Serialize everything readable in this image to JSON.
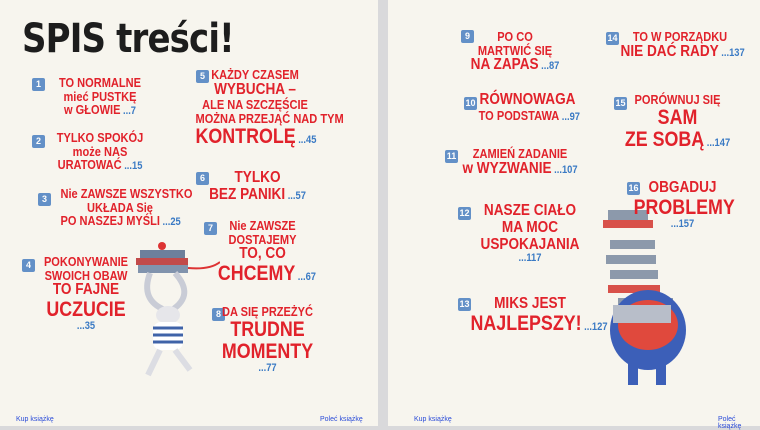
{
  "title": "SPIS treści!",
  "colors": {
    "text": "#e1222b",
    "page_number": "#3a7ac4",
    "badge": "#4a7fc1",
    "paper": "#f7f5ee"
  },
  "entries": [
    {
      "num": "1",
      "lines": [
        "TO NORMALNE",
        "mieć PUSTKĘ",
        "w GŁOWIE"
      ],
      "emphasis": [
        "s",
        "s",
        "s"
      ],
      "page": "...7",
      "page_own_line": false
    },
    {
      "num": "2",
      "lines": [
        "TYLKO SPOKÓJ",
        "może NAS",
        "URATOWAĆ"
      ],
      "emphasis": [
        "s",
        "s",
        "s"
      ],
      "page": "...15",
      "page_own_line": false
    },
    {
      "num": "3",
      "lines": [
        "Nie ZAWSZE WSZYSTKO",
        "UKŁADA Się",
        "PO NASZEJ MYŚLI"
      ],
      "emphasis": [
        "s",
        "s",
        "s"
      ],
      "page": "...25",
      "page_own_line": false
    },
    {
      "num": "4",
      "lines": [
        "POKONYWANIE",
        "SWOICH OBAW",
        "TO FAJNE",
        "UCZUCIE"
      ],
      "emphasis": [
        "s",
        "s",
        "m",
        "l"
      ],
      "page": "...35",
      "page_own_line": true
    },
    {
      "num": "5",
      "lines": [
        "KAŻDY CZASEM",
        "WYBUCHA –",
        "ALE NA SZCZĘŚCIE",
        "MOŻNA PRZEJĄĆ NAD TYM",
        "KONTROLĘ"
      ],
      "emphasis": [
        "s",
        "m",
        "s",
        "s",
        "l"
      ],
      "page": "...45",
      "page_own_line": false
    },
    {
      "num": "6",
      "lines": [
        "TYLKO",
        "BEZ PANIKI"
      ],
      "emphasis": [
        "m",
        "m"
      ],
      "page": "...57",
      "page_own_line": false
    },
    {
      "num": "7",
      "lines": [
        "Nie ZAWSZE",
        "DOSTAJEMY",
        "TO, CO",
        "CHCEMY"
      ],
      "emphasis": [
        "s",
        "s",
        "m",
        "l"
      ],
      "page": "...67",
      "page_own_line": false
    },
    {
      "num": "8",
      "lines": [
        "DA SIĘ PRZEŻYĆ",
        "TRUDNE",
        "MOMENTY"
      ],
      "emphasis": [
        "s",
        "l",
        "l"
      ],
      "page": "...77",
      "page_own_line": true
    },
    {
      "num": "9",
      "lines": [
        "PO CO",
        "MARTWIĆ SIĘ",
        "NA ZAPAS"
      ],
      "emphasis": [
        "s",
        "s",
        "m"
      ],
      "page": "...87",
      "page_own_line": false
    },
    {
      "num": "10",
      "lines": [
        "RÓWNOWAGA",
        "TO PODSTAWA"
      ],
      "emphasis": [
        "m",
        "s"
      ],
      "page": "...97",
      "page_own_line": false
    },
    {
      "num": "11",
      "lines": [
        "ZAMIEŃ ZADANIE",
        "w WYZWANIE"
      ],
      "emphasis": [
        "s",
        "m"
      ],
      "page": "...107",
      "page_own_line": false
    },
    {
      "num": "12",
      "lines": [
        "NASZE CIAŁO",
        "MA MOC",
        "USPOKAJANIA"
      ],
      "emphasis": [
        "m",
        "m",
        "m"
      ],
      "page": "...117",
      "page_own_line": true
    },
    {
      "num": "13",
      "lines": [
        "MIKS JEST",
        "NAJLEPSZY!"
      ],
      "emphasis": [
        "m",
        "l"
      ],
      "page": "...127",
      "page_own_line": false
    },
    {
      "num": "14",
      "lines": [
        "TO W PORZĄDKU",
        "NIE DAĆ RADY"
      ],
      "emphasis": [
        "s",
        "m"
      ],
      "page": "...137",
      "page_own_line": false
    },
    {
      "num": "15",
      "lines": [
        "PORÓWNUJ SIĘ",
        "SAM",
        "ZE SOBĄ"
      ],
      "emphasis": [
        "s",
        "l",
        "l"
      ],
      "page": "...147",
      "page_own_line": false
    },
    {
      "num": "16",
      "lines": [
        "OBGADUJ",
        "PROBLEMY"
      ],
      "emphasis": [
        "m",
        "l"
      ],
      "page": "...157",
      "page_own_line": true
    }
  ],
  "footer": {
    "buy": "Kup książkę",
    "recommend": "Poleć książkę"
  }
}
